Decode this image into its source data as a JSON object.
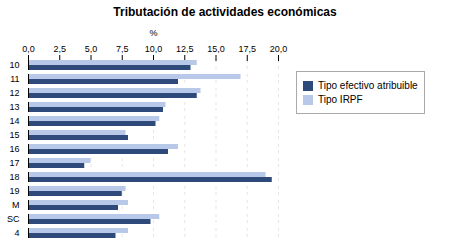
{
  "chart_data": {
    "type": "bar",
    "title": "Tributación de actividades económicas",
    "xlabel": "%",
    "orientation": "horizontal",
    "categories": [
      "10",
      "11",
      "12",
      "13",
      "14",
      "15",
      "16",
      "17",
      "18",
      "19",
      "M",
      "SC",
      "4"
    ],
    "series": [
      {
        "name": "Tipo efectivo atribuible",
        "color": "#2E4A7A",
        "values": [
          13.0,
          12.0,
          13.5,
          10.8,
          10.2,
          8.0,
          11.2,
          4.5,
          19.5,
          7.5,
          7.2,
          9.8,
          7.0
        ]
      },
      {
        "name": "Tipo IRPF",
        "color": "#B8C8E8",
        "values": [
          13.5,
          17.0,
          13.8,
          11.0,
          10.5,
          7.8,
          12.0,
          5.0,
          19.0,
          7.8,
          8.0,
          10.5,
          8.0
        ]
      }
    ],
    "xlim": [
      0,
      20.0
    ],
    "xticks": [
      {
        "value": 0.0,
        "label": "0,0"
      },
      {
        "value": 2.5,
        "label": "2,5"
      },
      {
        "value": 5.0,
        "label": "5,0"
      },
      {
        "value": 7.5,
        "label": "7,5"
      },
      {
        "value": 10.0,
        "label": "10,0"
      },
      {
        "value": 12.5,
        "label": "12,5"
      },
      {
        "value": 15.0,
        "label": "15,0"
      },
      {
        "value": 17.5,
        "label": "17,5"
      },
      {
        "value": 20.0,
        "label": "20,0"
      }
    ],
    "grid": true,
    "legend": "right"
  }
}
